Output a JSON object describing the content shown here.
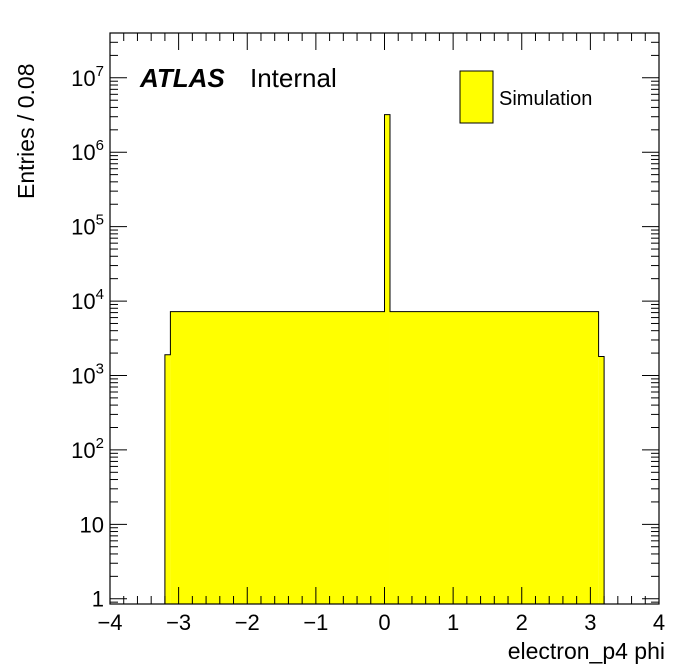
{
  "chart_data": {
    "type": "histogram",
    "xlabel": "electron_p4 phi",
    "ylabel": "Entries / 0.08",
    "xlim": [
      -4,
      4
    ],
    "ylim": [
      0.85,
      40000000
    ],
    "log_y": true,
    "grid": false,
    "legend_position": "top-right",
    "bin_width": 0.08,
    "x_ticks": [
      -4,
      -3,
      -2,
      -1,
      0,
      1,
      2,
      3,
      4
    ],
    "x_tick_labels": [
      "−4",
      "−3",
      "−2",
      "−1",
      "0",
      "1",
      "2",
      "3",
      "4"
    ],
    "y_ticks": [
      {
        "value": 1,
        "base": "1",
        "exp": ""
      },
      {
        "value": 10,
        "base": "10",
        "exp": ""
      },
      {
        "value": 100,
        "base": "10",
        "exp": "2"
      },
      {
        "value": 1000,
        "base": "10",
        "exp": "3"
      },
      {
        "value": 10000,
        "base": "10",
        "exp": "4"
      },
      {
        "value": 100000,
        "base": "10",
        "exp": "5"
      },
      {
        "value": 1000000,
        "base": "10",
        "exp": "6"
      },
      {
        "value": 10000000,
        "base": "10",
        "exp": "7"
      }
    ],
    "series": [
      {
        "name": "Simulation",
        "color": "#ffff00",
        "edge_color": "#000000",
        "bins": [
          {
            "lo": -3.2,
            "hi": -3.12,
            "value": 1900
          },
          {
            "lo": -3.12,
            "hi": 0.0,
            "value": 7200,
            "note": "flat plateau"
          },
          {
            "lo": 0.0,
            "hi": 0.08,
            "value": 3200000
          },
          {
            "lo": 0.08,
            "hi": 3.12,
            "value": 7200,
            "note": "flat plateau"
          },
          {
            "lo": 3.12,
            "hi": 3.2,
            "value": 1800
          }
        ]
      }
    ],
    "annotations": {
      "experiment": "ATLAS",
      "status": "Internal"
    }
  }
}
